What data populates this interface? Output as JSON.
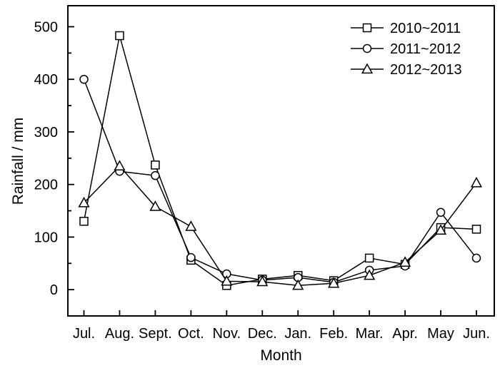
{
  "chart_data": {
    "type": "line",
    "title": "",
    "xlabel": "Month",
    "ylabel": "Rainfall / mm",
    "categories": [
      "Jul.",
      "Aug.",
      "Sept.",
      "Oct.",
      "Nov.",
      "Dec.",
      "Jan.",
      "Feb.",
      "Mar.",
      "Apr.",
      "May",
      "Jun."
    ],
    "series": [
      {
        "name": "2010~2011",
        "marker": "square",
        "values": [
          130,
          483,
          237,
          56,
          8,
          20,
          27,
          17,
          60,
          48,
          118,
          115
        ]
      },
      {
        "name": "2011~2012",
        "marker": "circle",
        "values": [
          400,
          225,
          217,
          61,
          30,
          18,
          23,
          14,
          37,
          45,
          147,
          60
        ]
      },
      {
        "name": "2012~2013",
        "marker": "triangle",
        "values": [
          165,
          235,
          158,
          120,
          16,
          15,
          8,
          12,
          27,
          52,
          113,
          203
        ]
      }
    ],
    "ylim": [
      -50,
      540
    ],
    "yticks": [
      0,
      100,
      200,
      300,
      400,
      500
    ],
    "minor_ytick_step": 50,
    "legend_position": "top-right",
    "grid": false,
    "colors": {
      "foreground": "#000000",
      "background": "#ffffff"
    }
  }
}
